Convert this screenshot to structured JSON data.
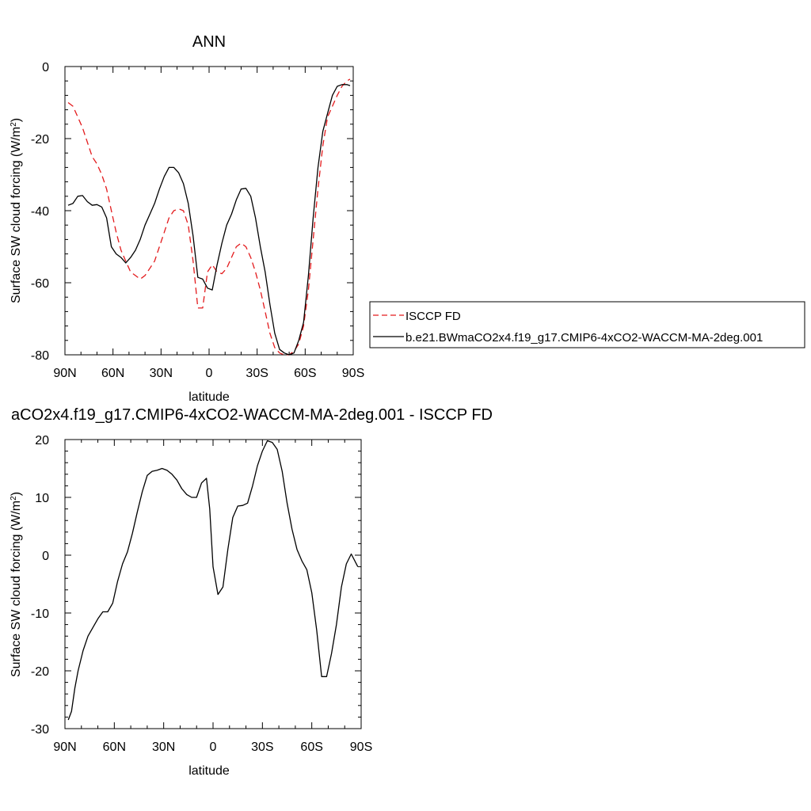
{
  "chart_data": [
    {
      "type": "line",
      "title": "ANN",
      "xlabel": "latitude",
      "ylabel": "Surface SW cloud forcing (W/m²)",
      "ylabel_main": "Surface SW cloud forcing (W/m",
      "ylabel_sup": "2",
      "ylabel_close": ")",
      "xlim": [
        90,
        -90
      ],
      "ylim": [
        -80,
        0
      ],
      "x_ticks": [
        90,
        60,
        30,
        0,
        -30,
        -60,
        -90
      ],
      "x_tick_labels": [
        "90N",
        "60N",
        "30N",
        "0",
        "30S",
        "60S",
        "90S"
      ],
      "y_ticks": [
        0,
        -20,
        -40,
        -60,
        -80
      ],
      "y_tick_labels": [
        "0",
        "-20",
        "-40",
        "-60",
        "-80"
      ],
      "legend_position": "right",
      "series": [
        {
          "name": "ISCCP FD",
          "color": "#e31a1c",
          "dash": "dashed",
          "x": [
            88,
            85,
            82,
            79,
            76,
            73,
            70,
            67,
            64,
            61,
            58,
            55,
            52,
            49,
            46,
            43,
            40,
            37,
            34,
            31,
            28,
            25,
            22,
            19,
            16,
            13,
            10,
            7,
            4,
            1,
            -2,
            -5,
            -8,
            -11,
            -14,
            -17,
            -20,
            -23,
            -26,
            -29,
            -32,
            -35,
            -38,
            -41,
            -44,
            -47,
            -50,
            -53,
            -56,
            -59,
            -62,
            -65,
            -68,
            -71,
            -74,
            -77,
            -80,
            -83,
            -86,
            -88
          ],
          "y": [
            -10,
            -11,
            -14,
            -17,
            -21,
            -25,
            -27,
            -30,
            -34,
            -40,
            -46,
            -51,
            -54,
            -57,
            -58,
            -59,
            -58,
            -56,
            -54,
            -50,
            -46,
            -42,
            -40,
            -39.5,
            -40,
            -44,
            -54,
            -67,
            -67,
            -57,
            -55,
            -57,
            -57.5,
            -56,
            -53,
            -50,
            -49,
            -50,
            -53,
            -57,
            -62,
            -68,
            -74,
            -78,
            -79.5,
            -80,
            -80,
            -79,
            -77,
            -72,
            -62,
            -48,
            -34,
            -22,
            -14,
            -11,
            -8,
            -5.5,
            -4,
            -3.5
          ]
        },
        {
          "name": "b.e21.BWmaCO2x4.f19_g17.CMIP6-4xCO2-WACCM-MA-2deg.001",
          "color": "#000000",
          "dash": "solid",
          "x": [
            88,
            85,
            82,
            79,
            76,
            73,
            70,
            67,
            64,
            61,
            58,
            55,
            52,
            49,
            46,
            43,
            40,
            37,
            34,
            31,
            28,
            25,
            22,
            19,
            16,
            13,
            10,
            7,
            4,
            1,
            -2,
            -5,
            -8,
            -11,
            -14,
            -17,
            -20,
            -23,
            -26,
            -29,
            -32,
            -35,
            -38,
            -41,
            -44,
            -47,
            -50,
            -53,
            -56,
            -59,
            -62,
            -65,
            -68,
            -71,
            -74,
            -77,
            -80,
            -83,
            -86,
            -88
          ],
          "y": [
            -38.5,
            -38,
            -36,
            -35.8,
            -37.5,
            -38.5,
            -38.3,
            -39,
            -42,
            -50,
            -52,
            -53,
            -54.5,
            -53,
            -51,
            -48,
            -44,
            -41,
            -38,
            -34,
            -30.5,
            -28,
            -28,
            -29.5,
            -32.5,
            -38,
            -47,
            -58.5,
            -59,
            -61.5,
            -62,
            -55,
            -49,
            -44,
            -41,
            -37,
            -34,
            -33.8,
            -36,
            -42,
            -50,
            -57,
            -66,
            -74,
            -78.5,
            -79.5,
            -80,
            -79.5,
            -76,
            -71,
            -58,
            -42,
            -28,
            -18,
            -13,
            -8,
            -5.5,
            -5,
            -5,
            -5.3
          ]
        }
      ]
    },
    {
      "type": "line",
      "title": "aCO2x4.f19_g17.CMIP6-4xCO2-WACCM-MA-2deg.001 - ISCCP FD",
      "xlabel": "latitude",
      "ylabel": "Surface SW cloud forcing (W/m²)",
      "ylabel_main": "Surface SW cloud forcing (W/m",
      "ylabel_sup": "2",
      "ylabel_close": ")",
      "xlim": [
        90,
        -90
      ],
      "ylim": [
        -30,
        20
      ],
      "x_ticks": [
        90,
        60,
        30,
        0,
        -30,
        -60,
        -90
      ],
      "x_tick_labels": [
        "90N",
        "60N",
        "30N",
        "0",
        "30S",
        "60S",
        "90S"
      ],
      "y_ticks": [
        20,
        10,
        0,
        -10,
        -20,
        -30
      ],
      "y_tick_labels": [
        "20",
        "10",
        "0",
        "-10",
        "-20",
        "-30"
      ],
      "series": [
        {
          "color": "#000000",
          "dash": "solid",
          "x": [
            88,
            86,
            84,
            82,
            79,
            76,
            73,
            70,
            67,
            64,
            61,
            58,
            55,
            52,
            49,
            46,
            43,
            40,
            37,
            34,
            31,
            28,
            25,
            22,
            19,
            16,
            13,
            10,
            7,
            4,
            2,
            0,
            -3,
            -6,
            -9,
            -12,
            -15,
            -18,
            -21,
            -24,
            -27,
            -30,
            -33,
            -36,
            -39,
            -42,
            -45,
            -48,
            -51,
            -54,
            -57,
            -60,
            -63,
            -66,
            -69,
            -72,
            -75,
            -78,
            -81,
            -84,
            -88
          ],
          "y": [
            -28.5,
            -27,
            -23,
            -20,
            -16.5,
            -14,
            -12.5,
            -11,
            -9.8,
            -9.8,
            -8.3,
            -4.5,
            -1.5,
            0.6,
            3.8,
            7.5,
            11,
            13.8,
            14.5,
            14.7,
            15,
            14.7,
            14,
            13,
            11.5,
            10.5,
            10,
            10,
            12.5,
            13.3,
            8,
            -2,
            -6.8,
            -5.5,
            1,
            6.5,
            8.5,
            8.6,
            9,
            12,
            15.5,
            18,
            19.8,
            19.5,
            18.3,
            14.5,
            9,
            4.5,
            1,
            -1,
            -2.5,
            -6.5,
            -13,
            -21,
            -21,
            -17,
            -12,
            -5.5,
            -1.5,
            0.2,
            -2
          ]
        }
      ]
    }
  ]
}
